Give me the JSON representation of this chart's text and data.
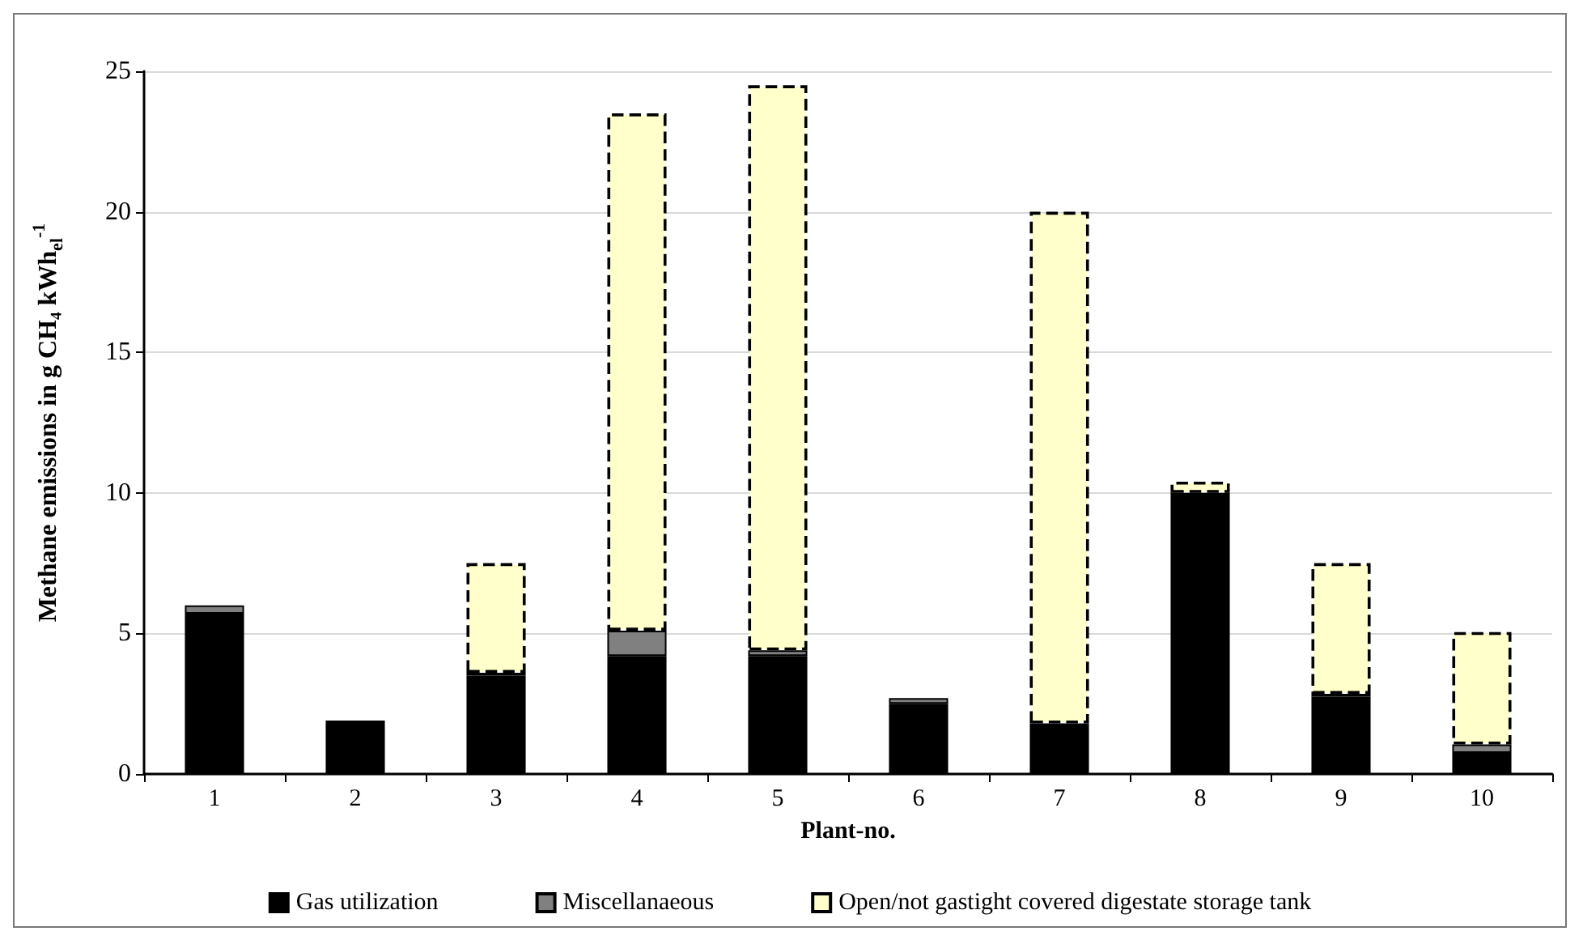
{
  "chart_data": {
    "type": "bar",
    "stacked": true,
    "xlabel": "Plant-no.",
    "ylabel": "Methane emissions in g CH₄ kWh$_{el}$$^{-1}$",
    "categories": [
      "1",
      "2",
      "3",
      "4",
      "5",
      "6",
      "7",
      "8",
      "9",
      "10"
    ],
    "series": [
      {
        "name": "Gas utilization",
        "color": "#000000",
        "values": [
          5.7,
          1.9,
          3.5,
          4.2,
          4.2,
          2.5,
          1.8,
          10.0,
          2.75,
          0.75
        ]
      },
      {
        "name": "Miscellanaeous",
        "color": "#808080",
        "values": [
          0.3,
          0,
          0.1,
          0.9,
          0.2,
          0.2,
          0,
          0,
          0.1,
          0.3
        ]
      },
      {
        "name": "Open/not gastight covered digestate storage tank",
        "color": "#ffffcc",
        "line_style": "dashed",
        "values": [
          0,
          0,
          3.9,
          18.4,
          20.1,
          0,
          18.2,
          0.4,
          4.65,
          4.0
        ]
      }
    ],
    "ylim": [
      0,
      25
    ],
    "yticks": [
      0,
      5,
      10,
      15,
      20,
      25
    ],
    "grid": "y",
    "legend": "bottom"
  }
}
